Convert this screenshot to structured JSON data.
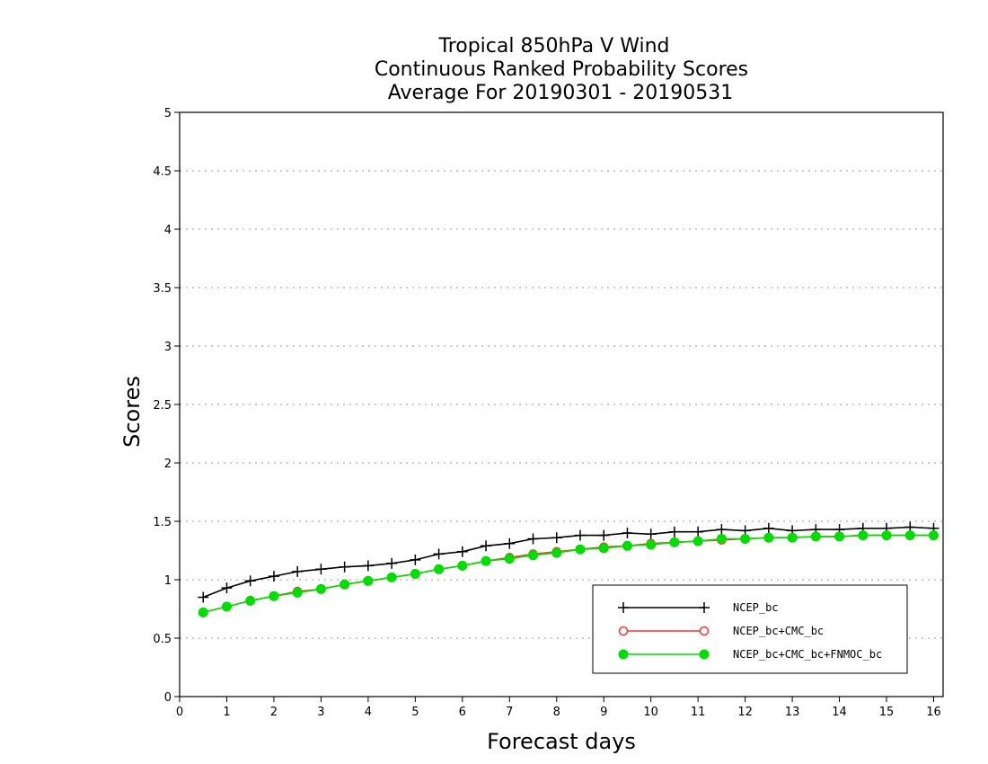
{
  "chart_data": {
    "type": "line",
    "title": [
      "Tropical 850hPa V Wind",
      "Continuous Ranked Probability Scores",
      "Average For 20190301 - 20190531"
    ],
    "xlabel": "Forecast days",
    "ylabel": "Scores",
    "xlim": [
      0,
      16.2
    ],
    "ylim": [
      0,
      5
    ],
    "xticks": [
      "0",
      "1",
      "2",
      "3",
      "4",
      "5",
      "6",
      "7",
      "8",
      "9",
      "10",
      "11",
      "12",
      "13",
      "14",
      "15",
      "16"
    ],
    "yticks": [
      "0",
      "0.5",
      "1",
      "1.5",
      "2",
      "2.5",
      "3",
      "3.5",
      "4",
      "4.5",
      "5"
    ],
    "grid": "horizontal dotted",
    "legend_position": "bottom-right",
    "x": [
      0.5,
      1,
      1.5,
      2,
      2.5,
      3,
      3.5,
      4,
      4.5,
      5,
      5.5,
      6,
      6.5,
      7,
      7.5,
      8,
      8.5,
      9,
      9.5,
      10,
      10.5,
      11,
      11.5,
      12,
      12.5,
      13,
      13.5,
      14,
      14.5,
      15,
      15.5,
      16
    ],
    "series": [
      {
        "name": "NCEP_bc",
        "color": "#000000",
        "marker": "plus",
        "values": [
          0.85,
          0.93,
          0.99,
          1.03,
          1.07,
          1.09,
          1.11,
          1.12,
          1.14,
          1.17,
          1.22,
          1.24,
          1.29,
          1.31,
          1.35,
          1.36,
          1.38,
          1.38,
          1.4,
          1.39,
          1.41,
          1.41,
          1.43,
          1.42,
          1.44,
          1.42,
          1.43,
          1.43,
          1.44,
          1.44,
          1.45,
          1.44
        ]
      },
      {
        "name": "NCEP_bc+CMC_bc",
        "color": "#ff3030",
        "marker": "open-circle",
        "values": [
          0.72,
          0.77,
          0.82,
          0.86,
          0.9,
          0.92,
          0.96,
          0.99,
          1.02,
          1.05,
          1.09,
          1.12,
          1.16,
          1.19,
          1.22,
          1.24,
          1.26,
          1.28,
          1.29,
          1.31,
          1.32,
          1.33,
          1.34,
          1.35,
          1.36,
          1.36,
          1.37,
          1.37,
          1.38,
          1.38,
          1.38,
          1.38
        ]
      },
      {
        "name": "NCEP_bc+CMC_bc+FNMOC_bc",
        "color": "#00dd00",
        "marker": "filled-circle",
        "values": [
          0.72,
          0.77,
          0.82,
          0.86,
          0.89,
          0.92,
          0.96,
          0.99,
          1.02,
          1.05,
          1.09,
          1.12,
          1.16,
          1.18,
          1.21,
          1.23,
          1.26,
          1.27,
          1.29,
          1.3,
          1.32,
          1.33,
          1.35,
          1.35,
          1.36,
          1.36,
          1.37,
          1.37,
          1.38,
          1.38,
          1.38,
          1.38
        ]
      }
    ]
  }
}
